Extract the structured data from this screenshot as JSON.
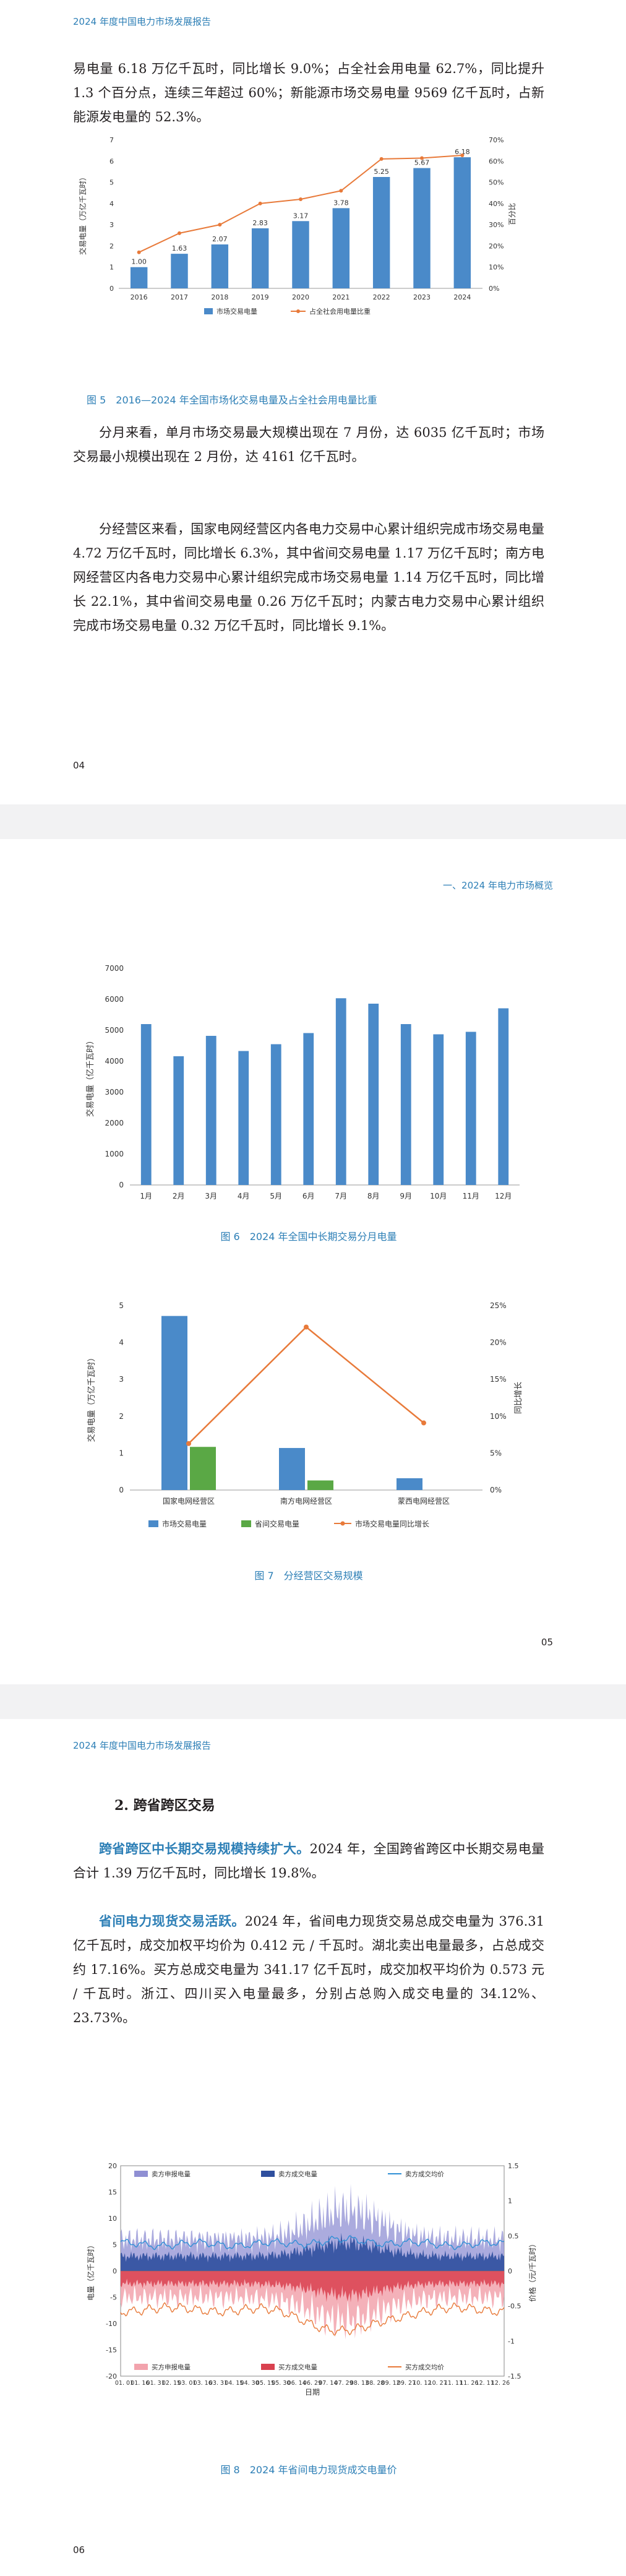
{
  "pages": {
    "p4": {
      "header": "2024 年度中国电力市场发展报告",
      "para1": "易电量 6.18 万亿千瓦时，同比增长 9.0%；占全社会用电量 62.7%，同比提升 1.3 个百分点，连续三年超过 60%；新能源市场交易电量 9569 亿千瓦时，占新能源发电量的 52.3%。",
      "para2": "分月来看，单月市场交易最大规模出现在 7 月份，达 6035 亿千瓦时；市场交易最小规模出现在 2 月份，达 4161 亿千瓦时。",
      "para3": "分经营区来看，国家电网经营区内各电力交易中心累计组织完成市场交易电量 4.72 万亿千瓦时，同比增长 6.3%，其中省间交易电量 1.17 万亿千瓦时；南方电网经营区内各电力交易中心累计组织完成市场交易电量 1.14 万亿千瓦时，同比增长 22.1%，其中省间交易电量 0.26 万亿千瓦时；内蒙古电力交易中心累计组织完成市场交易电量 0.32 万亿千瓦时，同比增长 9.1%。",
      "page_no": "04"
    },
    "p5": {
      "header": "一、2024 年电力市场概览",
      "page_no": "05"
    },
    "p6": {
      "header": "2024 年度中国电力市场发展报告",
      "section": "2. 跨省跨区交易",
      "para1_hl": "跨省跨区中长期交易规模持续扩大。",
      "para1": "2024 年，全国跨省跨区中长期交易电量合计 1.39 万亿千瓦时，同比增长 19.8%。",
      "para2_hl": "省间电力现货交易活跃。",
      "para2": "2024 年，省间电力现货交易总成交电量为 376.31 亿千瓦时，成交加权平均价为 0.412 元 / 千瓦时。湖北卖出电量最多，占总成交约 17.16%。买方总成交电量为 341.17 亿千瓦时，成交加权平均价为 0.573 元 / 千瓦时。浙江、四川买入电量最多，分别占总购入成交电量的 34.12%、23.73%。",
      "page_no": "06"
    }
  },
  "colors": {
    "blue": "#4a8ac9",
    "orange": "#e87a3a",
    "green": "#5aa845",
    "caption": "#2d7fb6"
  },
  "chart_data": [
    {
      "type": "bar",
      "caption": "图 5　2016—2024 年全国市场化交易电量及占全社会用电量比重",
      "categories": [
        "2016",
        "2017",
        "2018",
        "2019",
        "2020",
        "2021",
        "2022",
        "2023",
        "2024"
      ],
      "series": [
        {
          "name": "市场交易电量",
          "type": "bar",
          "axis": "left",
          "values": [
            1.0,
            1.63,
            2.07,
            2.83,
            3.17,
            3.78,
            5.25,
            5.67,
            6.18
          ],
          "labels": [
            "1.00",
            "1.63",
            "2.07",
            "2.83",
            "3.17",
            "3.78",
            "5.25",
            "5.67",
            "6.18"
          ]
        },
        {
          "name": "占全社会用电量比重",
          "type": "line",
          "axis": "right",
          "values": [
            17,
            26,
            30,
            40,
            42,
            46,
            61,
            61.4,
            62.7
          ]
        }
      ],
      "ylabel": "交易电量（万亿千瓦时）",
      "y2label": "百分比",
      "ylim": [
        0,
        7
      ],
      "yticks": [
        "0",
        "1",
        "2",
        "3",
        "4",
        "5",
        "6",
        "7"
      ],
      "y2lim": [
        0,
        70
      ],
      "y2ticks": [
        "0%",
        "10%",
        "20%",
        "30%",
        "40%",
        "50%",
        "60%",
        "70%"
      ],
      "legend": "bottom",
      "grid": false
    },
    {
      "type": "bar",
      "caption": "图 6　2024 年全国中长期交易分月电量",
      "categories": [
        "1月",
        "2月",
        "3月",
        "4月",
        "5月",
        "6月",
        "7月",
        "8月",
        "9月",
        "10月",
        "11月",
        "12月"
      ],
      "values": [
        5200,
        4161,
        4820,
        4330,
        4550,
        4910,
        6035,
        5860,
        5200,
        4870,
        4950,
        5710
      ],
      "ylabel": "交易电量（亿千瓦时）",
      "ylim": [
        0,
        7000
      ],
      "yticks": [
        "0",
        "1000",
        "2000",
        "3000",
        "4000",
        "5000",
        "6000",
        "7000"
      ],
      "grid": false
    },
    {
      "type": "bar",
      "caption": "图 7　分经营区交易规模",
      "categories": [
        "国家电网经营区",
        "南方电网经营区",
        "蒙西电网经营区"
      ],
      "series": [
        {
          "name": "市场交易电量",
          "type": "bar",
          "axis": "left",
          "values": [
            4.72,
            1.14,
            0.32
          ]
        },
        {
          "name": "省间交易电量",
          "type": "bar",
          "axis": "left",
          "values": [
            1.17,
            0.26,
            0
          ]
        },
        {
          "name": "市场交易电量同比增长",
          "type": "line",
          "axis": "right",
          "values": [
            6.3,
            22.1,
            9.1
          ]
        }
      ],
      "ylabel": "交易电量（万亿千瓦时）",
      "y2label": "同比增长",
      "ylim": [
        0,
        5
      ],
      "yticks": [
        "0",
        "1",
        "2",
        "3",
        "4",
        "5"
      ],
      "y2lim": [
        0,
        25
      ],
      "y2ticks": [
        "0%",
        "5%",
        "10%",
        "15%",
        "20%",
        "25%"
      ],
      "legend": "bottom",
      "grid": false
    },
    {
      "type": "area",
      "caption": "图 8　2024 年省间电力现货成交电量价",
      "xlabel": "日期",
      "ylabel": "电量（亿千瓦时）",
      "y2label": "价格（元/千瓦时）",
      "ylim": [
        -20,
        20
      ],
      "yticks": [
        "20",
        "15",
        "10",
        "5",
        "0",
        "-5",
        "-10",
        "-15",
        "-20"
      ],
      "y2lim": [
        -1.5,
        1.5
      ],
      "y2ticks": [
        "1.5",
        "1",
        "0.5",
        "0",
        "-0.5",
        "-1",
        "-1.5"
      ],
      "xticks": [
        "01. 01",
        "01. 16",
        "01. 31",
        "02. 15",
        "03. 01",
        "03. 16",
        "03. 31",
        "04. 15",
        "04. 30",
        "05. 15",
        "05. 30",
        "06. 14",
        "06. 29",
        "07. 14",
        "07. 29",
        "08. 13",
        "08. 28",
        "09. 12",
        "09. 27",
        "10. 12",
        "10. 27",
        "11. 11",
        "11. 26",
        "12. 11",
        "12. 26"
      ],
      "series": [
        {
          "name": "卖方申报电量",
          "type": "area"
        },
        {
          "name": "卖方成交电量",
          "type": "area"
        },
        {
          "name": "卖方成交均价",
          "type": "line"
        },
        {
          "name": "买方申报电量",
          "type": "area"
        },
        {
          "name": "买方成交电量",
          "type": "area"
        },
        {
          "name": "买方成交均价",
          "type": "line"
        }
      ],
      "legend": "top and bottom",
      "grid": false
    }
  ]
}
